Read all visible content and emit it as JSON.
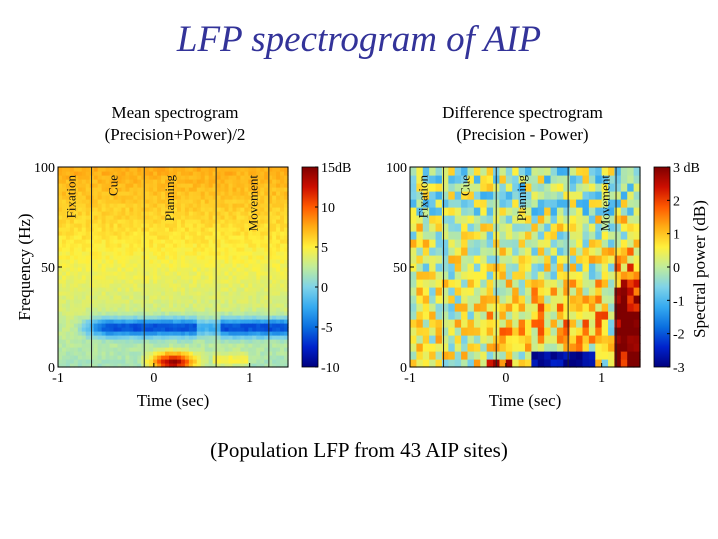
{
  "title": "LFP spectrogram of AIP",
  "footer": "(Population LFP from 43 AIP sites)",
  "colorbar_stops": [
    "#00007f",
    "#0022cc",
    "#0a6fe0",
    "#35aaf0",
    "#7fd3e8",
    "#c0ec9a",
    "#fff03c",
    "#ffad14",
    "#ff5a00",
    "#cc0e00",
    "#7f0000"
  ],
  "chart_data": [
    {
      "type": "heatmap",
      "subtitle": [
        "Mean spectrogram",
        "(Precision+Power)/2"
      ],
      "xlabel": "Time (sec)",
      "ylabel": "Frequency (Hz)",
      "xlim": [
        -1.0,
        1.4
      ],
      "ylim": [
        0,
        100
      ],
      "xticks": [
        {
          "value": -1,
          "label": "-1"
        },
        {
          "value": 0,
          "label": "0"
        },
        {
          "value": 1,
          "label": "1"
        }
      ],
      "yticks": [
        {
          "value": 0,
          "label": "0"
        },
        {
          "value": 50,
          "label": "50"
        },
        {
          "value": 100,
          "label": "100"
        }
      ],
      "epochs": [
        {
          "time": -0.65,
          "label": "Fixation"
        },
        {
          "time": -0.1,
          "label": "Cue"
        },
        {
          "time": 0.65,
          "label": "Planning"
        },
        {
          "time": 1.2,
          "label": "Movement"
        }
      ],
      "epoch_label_centers": [
        -0.86,
        -0.42,
        0.17,
        1.04
      ],
      "colorbar": {
        "range": [
          -10,
          15
        ],
        "ticks": [
          {
            "value": 15,
            "label": "15dB"
          },
          {
            "value": 10,
            "label": "10"
          },
          {
            "value": 5,
            "label": "5"
          },
          {
            "value": 0,
            "label": "0"
          },
          {
            "value": -5,
            "label": "-5"
          },
          {
            "value": -10,
            "label": "-10"
          }
        ]
      },
      "features": {
        "low_freq_burst": {
          "t_range": [
            -0.1,
            0.5
          ],
          "f_range": [
            0,
            6
          ],
          "peak_db": 14
        },
        "beta_band": {
          "t_range": [
            -0.5,
            1.4
          ],
          "f_range": [
            16,
            24
          ],
          "peak_db": -7
        }
      }
    },
    {
      "type": "heatmap",
      "subtitle": [
        "Difference spectrogram",
        "(Precision - Power)"
      ],
      "xlabel": "Time (sec)",
      "ylabel": "",
      "xlim": [
        -1.0,
        1.4
      ],
      "ylim": [
        0,
        100
      ],
      "xticks": [
        {
          "value": -1,
          "label": "-1"
        },
        {
          "value": 0,
          "label": "0"
        },
        {
          "value": 1,
          "label": "1"
        }
      ],
      "yticks": [
        {
          "value": 0,
          "label": "0"
        },
        {
          "value": 50,
          "label": "50"
        },
        {
          "value": 100,
          "label": "100"
        }
      ],
      "epochs": [
        {
          "time": -0.65,
          "label": "Fixation"
        },
        {
          "time": -0.1,
          "label": "Cue"
        },
        {
          "time": 0.65,
          "label": "Planning"
        },
        {
          "time": 1.15,
          "label": "Movement"
        }
      ],
      "epoch_label_centers": [
        -0.86,
        -0.42,
        0.17,
        1.04
      ],
      "colorbar": {
        "range": [
          -3,
          3
        ],
        "label": "Spectral power (dB)",
        "ticks": [
          {
            "value": 3,
            "label": "3 dB"
          },
          {
            "value": 2,
            "label": "2"
          },
          {
            "value": 1,
            "label": "1"
          },
          {
            "value": 0,
            "label": "0"
          },
          {
            "value": -1,
            "label": "-1"
          },
          {
            "value": -2,
            "label": "-2"
          },
          {
            "value": -3,
            "label": "-3"
          }
        ]
      },
      "features": {
        "low_freq_dip": {
          "t_range": [
            0.25,
            0.9
          ],
          "f_range": [
            0,
            7
          ],
          "peak_db": -3
        },
        "movement_increase": {
          "t_range": [
            1.1,
            1.4
          ],
          "f_range": [
            0,
            45
          ],
          "peak_db": 3
        }
      }
    }
  ]
}
